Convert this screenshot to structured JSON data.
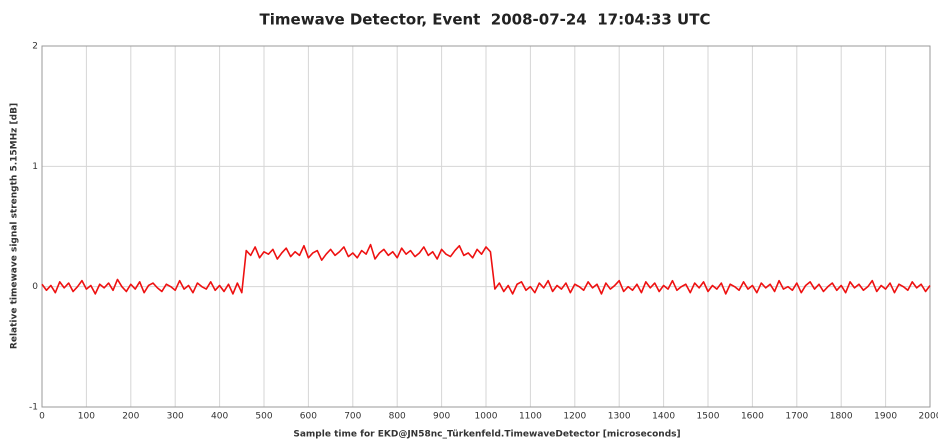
{
  "chart_data": {
    "type": "line",
    "title": "Timewave Detector, Event  2008-07-24  17:04:33 UTC",
    "x_label": "Sample time for EKD@JN58nc_Türkenfeld.TimewaveDetector [microseconds]",
    "y_label": "Relative timewave signal strength 5.15MHz [dB]",
    "xlim": [
      0,
      2000
    ],
    "ylim": [
      -1,
      2
    ],
    "xticks": [
      0,
      100,
      200,
      300,
      400,
      500,
      600,
      700,
      800,
      900,
      1000,
      1100,
      1200,
      1300,
      1400,
      1500,
      1600,
      1700,
      1800,
      1900,
      2000
    ],
    "yticks": [
      -1,
      0,
      1,
      2
    ],
    "grid": true,
    "x": [
      0,
      10,
      20,
      30,
      40,
      50,
      60,
      70,
      80,
      90,
      100,
      110,
      120,
      130,
      140,
      150,
      160,
      170,
      180,
      190,
      200,
      210,
      220,
      230,
      240,
      250,
      260,
      270,
      280,
      290,
      300,
      310,
      320,
      330,
      340,
      350,
      360,
      370,
      380,
      390,
      400,
      410,
      420,
      430,
      440,
      450,
      460,
      470,
      480,
      490,
      500,
      510,
      520,
      530,
      540,
      550,
      560,
      570,
      580,
      590,
      600,
      610,
      620,
      630,
      640,
      650,
      660,
      670,
      680,
      690,
      700,
      710,
      720,
      730,
      740,
      750,
      760,
      770,
      780,
      790,
      800,
      810,
      820,
      830,
      840,
      850,
      860,
      870,
      880,
      890,
      900,
      910,
      920,
      930,
      940,
      950,
      960,
      970,
      980,
      990,
      1000,
      1010,
      1020,
      1030,
      1040,
      1050,
      1060,
      1070,
      1080,
      1090,
      1100,
      1110,
      1120,
      1130,
      1140,
      1150,
      1160,
      1170,
      1180,
      1190,
      1200,
      1210,
      1220,
      1230,
      1240,
      1250,
      1260,
      1270,
      1280,
      1290,
      1300,
      1310,
      1320,
      1330,
      1340,
      1350,
      1360,
      1370,
      1380,
      1390,
      1400,
      1410,
      1420,
      1430,
      1440,
      1450,
      1460,
      1470,
      1480,
      1490,
      1500,
      1510,
      1520,
      1530,
      1540,
      1550,
      1560,
      1570,
      1580,
      1590,
      1600,
      1610,
      1620,
      1630,
      1640,
      1650,
      1660,
      1670,
      1680,
      1690,
      1700,
      1710,
      1720,
      1730,
      1740,
      1750,
      1760,
      1770,
      1780,
      1790,
      1800,
      1810,
      1820,
      1830,
      1840,
      1850,
      1860,
      1870,
      1880,
      1890,
      1900,
      1910,
      1920,
      1930,
      1940,
      1950,
      1960,
      1970,
      1980,
      1990,
      2000
    ],
    "series": [
      {
        "color": "#ee1111",
        "values": [
          0.02,
          -0.03,
          0.01,
          -0.05,
          0.04,
          -0.01,
          0.03,
          -0.04,
          0.0,
          0.05,
          -0.02,
          0.01,
          -0.06,
          0.02,
          -0.01,
          0.03,
          -0.03,
          0.06,
          0.0,
          -0.04,
          0.02,
          -0.02,
          0.04,
          -0.05,
          0.01,
          0.03,
          -0.01,
          -0.04,
          0.02,
          0.0,
          -0.03,
          0.05,
          -0.02,
          0.01,
          -0.05,
          0.03,
          0.0,
          -0.02,
          0.04,
          -0.03,
          0.01,
          -0.04,
          0.02,
          -0.06,
          0.03,
          -0.05,
          0.3,
          0.26,
          0.33,
          0.24,
          0.29,
          0.27,
          0.31,
          0.23,
          0.28,
          0.32,
          0.25,
          0.29,
          0.26,
          0.34,
          0.24,
          0.28,
          0.3,
          0.22,
          0.27,
          0.31,
          0.26,
          0.29,
          0.33,
          0.25,
          0.28,
          0.24,
          0.3,
          0.27,
          0.35,
          0.23,
          0.28,
          0.31,
          0.26,
          0.29,
          0.24,
          0.32,
          0.27,
          0.3,
          0.25,
          0.28,
          0.33,
          0.26,
          0.29,
          0.23,
          0.31,
          0.27,
          0.25,
          0.3,
          0.34,
          0.26,
          0.28,
          0.24,
          0.31,
          0.27,
          0.33,
          0.29,
          -0.02,
          0.03,
          -0.04,
          0.01,
          -0.06,
          0.02,
          0.04,
          -0.03,
          0.0,
          -0.05,
          0.03,
          -0.01,
          0.05,
          -0.04,
          0.01,
          -0.02,
          0.03,
          -0.05,
          0.02,
          0.0,
          -0.03,
          0.04,
          -0.01,
          0.02,
          -0.06,
          0.03,
          -0.02,
          0.01,
          0.05,
          -0.04,
          0.0,
          -0.03,
          0.02,
          -0.05,
          0.04,
          -0.01,
          0.03,
          -0.04,
          0.01,
          -0.02,
          0.05,
          -0.03,
          0.0,
          0.02,
          -0.05,
          0.03,
          -0.01,
          0.04,
          -0.04,
          0.01,
          -0.02,
          0.03,
          -0.06,
          0.02,
          0.0,
          -0.03,
          0.04,
          -0.02,
          0.01,
          -0.05,
          0.03,
          -0.01,
          0.02,
          -0.04,
          0.05,
          -0.02,
          0.0,
          -0.03,
          0.03,
          -0.05,
          0.01,
          0.04,
          -0.02,
          0.02,
          -0.04,
          0.0,
          0.03,
          -0.03,
          0.01,
          -0.05,
          0.04,
          -0.01,
          0.02,
          -0.03,
          0.0,
          0.05,
          -0.04,
          0.01,
          -0.02,
          0.03,
          -0.05,
          0.02,
          0.0,
          -0.03,
          0.04,
          -0.01,
          0.02,
          -0.04,
          0.01
        ]
      }
    ]
  }
}
